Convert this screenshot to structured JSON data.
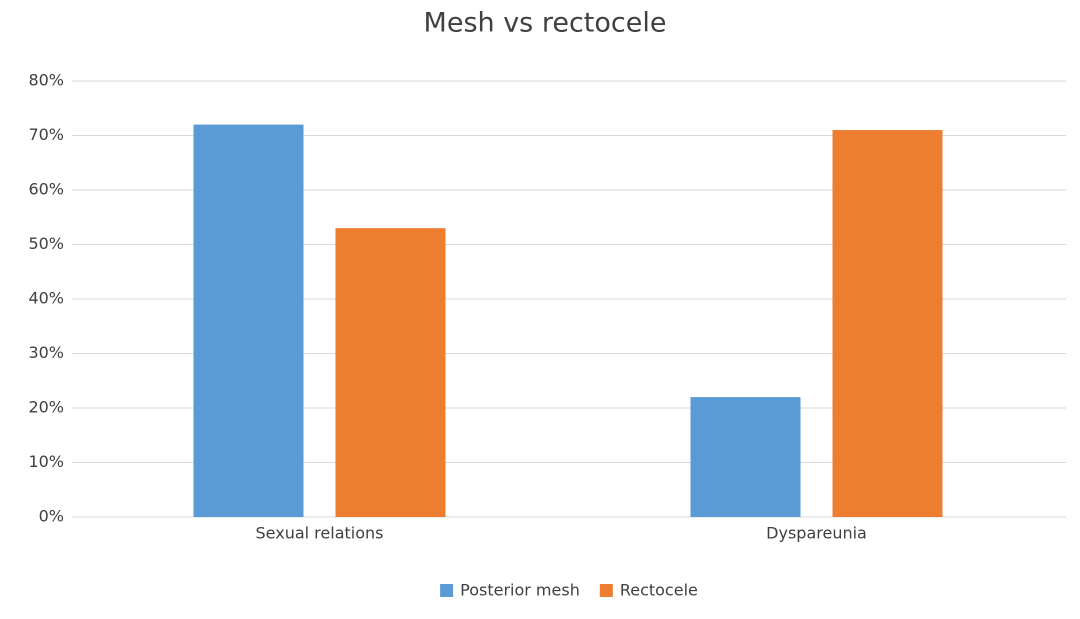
{
  "chart_data": {
    "type": "bar",
    "title": "Mesh vs rectocele",
    "categories": [
      "Sexual relations",
      "Dyspareunia"
    ],
    "series": [
      {
        "name": "Posterior mesh",
        "color": "#5b9bd5",
        "values": [
          72,
          22
        ]
      },
      {
        "name": "Rectocele",
        "color": "#ed7d31",
        "values": [
          53,
          71
        ]
      }
    ],
    "ylim": [
      0,
      80
    ],
    "yticks": [
      {
        "value": 0,
        "label": "0%"
      },
      {
        "value": 10,
        "label": "10%"
      },
      {
        "value": 20,
        "label": "20%"
      },
      {
        "value": 30,
        "label": "30%"
      },
      {
        "value": 40,
        "label": "40%"
      },
      {
        "value": 50,
        "label": "50%"
      },
      {
        "value": 60,
        "label": "60%"
      },
      {
        "value": 70,
        "label": "70%"
      },
      {
        "value": 80,
        "label": "80%"
      }
    ],
    "grid": true,
    "legend": "bottom"
  }
}
